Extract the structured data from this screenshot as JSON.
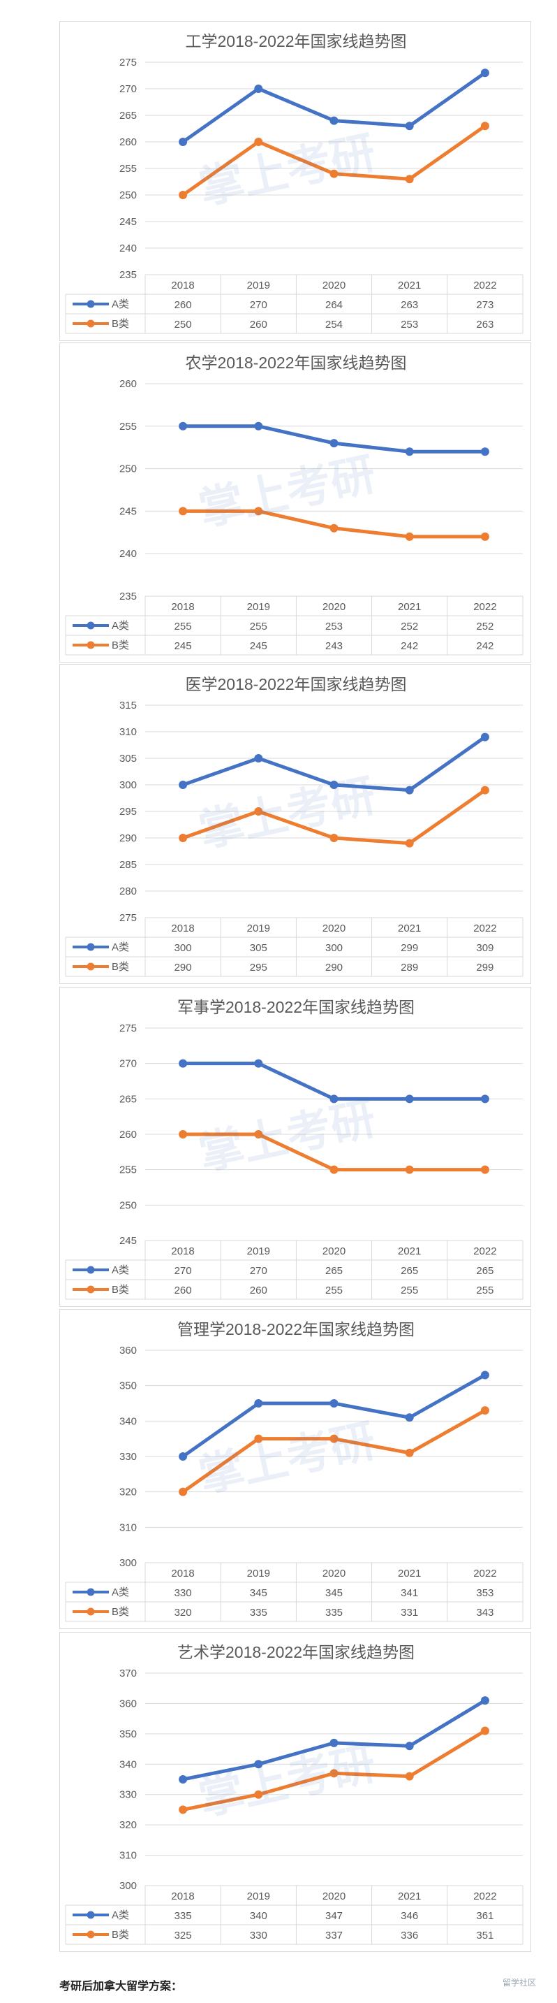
{
  "chart_data": [
    {
      "type": "line",
      "title": "工学2018-2022年国家线趋势图",
      "categories": [
        "2018",
        "2019",
        "2020",
        "2021",
        "2022"
      ],
      "ylim": [
        235,
        275
      ],
      "yticks": [
        235,
        240,
        245,
        250,
        255,
        260,
        265,
        270,
        275
      ],
      "series": [
        {
          "name": "A类",
          "color": "#4472c4",
          "values": [
            260,
            270,
            264,
            263,
            273
          ]
        },
        {
          "name": "B类",
          "color": "#ed7d31",
          "values": [
            250,
            260,
            254,
            253,
            263
          ]
        }
      ],
      "grid": true,
      "legend": "data-table"
    },
    {
      "type": "line",
      "title": "农学2018-2022年国家线趋势图",
      "categories": [
        "2018",
        "2019",
        "2020",
        "2021",
        "2022"
      ],
      "ylim": [
        235,
        260
      ],
      "yticks": [
        235,
        240,
        245,
        250,
        255,
        260
      ],
      "series": [
        {
          "name": "A类",
          "color": "#4472c4",
          "values": [
            255,
            255,
            253,
            252,
            252
          ]
        },
        {
          "name": "B类",
          "color": "#ed7d31",
          "values": [
            245,
            245,
            243,
            242,
            242
          ]
        }
      ],
      "grid": true,
      "legend": "data-table"
    },
    {
      "type": "line",
      "title": "医学2018-2022年国家线趋势图",
      "categories": [
        "2018",
        "2019",
        "2020",
        "2021",
        "2022"
      ],
      "ylim": [
        275,
        315
      ],
      "yticks": [
        275,
        280,
        285,
        290,
        295,
        300,
        305,
        310,
        315
      ],
      "series": [
        {
          "name": "A类",
          "color": "#4472c4",
          "values": [
            300,
            305,
            300,
            299,
            309
          ]
        },
        {
          "name": "B类",
          "color": "#ed7d31",
          "values": [
            290,
            295,
            290,
            289,
            299
          ]
        }
      ],
      "grid": true,
      "legend": "data-table"
    },
    {
      "type": "line",
      "title": "军事学2018-2022年国家线趋势图",
      "categories": [
        "2018",
        "2019",
        "2020",
        "2021",
        "2022"
      ],
      "ylim": [
        245,
        275
      ],
      "yticks": [
        245,
        250,
        255,
        260,
        265,
        270,
        275
      ],
      "series": [
        {
          "name": "A类",
          "color": "#4472c4",
          "values": [
            270,
            270,
            265,
            265,
            265
          ]
        },
        {
          "name": "B类",
          "color": "#ed7d31",
          "values": [
            260,
            260,
            255,
            255,
            255
          ]
        }
      ],
      "grid": true,
      "legend": "data-table"
    },
    {
      "type": "line",
      "title": "管理学2018-2022年国家线趋势图",
      "categories": [
        "2018",
        "2019",
        "2020",
        "2021",
        "2022"
      ],
      "ylim": [
        300,
        360
      ],
      "yticks": [
        300,
        310,
        320,
        330,
        340,
        350,
        360
      ],
      "series": [
        {
          "name": "A类",
          "color": "#4472c4",
          "values": [
            330,
            345,
            345,
            341,
            353
          ]
        },
        {
          "name": "B类",
          "color": "#ed7d31",
          "values": [
            320,
            335,
            335,
            331,
            343
          ]
        }
      ],
      "grid": true,
      "legend": "data-table"
    },
    {
      "type": "line",
      "title": "艺术学2018-2022年国家线趋势图",
      "categories": [
        "2018",
        "2019",
        "2020",
        "2021",
        "2022"
      ],
      "ylim": [
        300,
        370
      ],
      "yticks": [
        300,
        310,
        320,
        330,
        340,
        350,
        360,
        370
      ],
      "series": [
        {
          "name": "A类",
          "color": "#4472c4",
          "values": [
            335,
            340,
            347,
            346,
            361
          ]
        },
        {
          "name": "B类",
          "color": "#ed7d31",
          "values": [
            325,
            330,
            337,
            336,
            351
          ]
        }
      ],
      "grid": true,
      "legend": "data-table"
    }
  ],
  "watermark": "掌上考研",
  "footer": {
    "text": "考研后加拿大留学方案：",
    "site_mark": "留学社区"
  }
}
